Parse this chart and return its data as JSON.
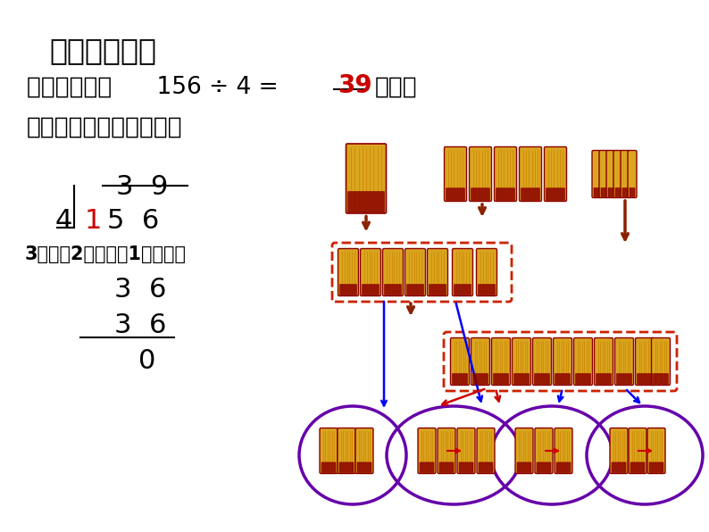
{
  "bg_color": "#ffffff",
  "title": "二、合作探索",
  "title_fontsize": 24,
  "line1_left": "列竖式计算：      156 ÷ 4 = ",
  "line1_answer": "39",
  "line1_right": "（吨）",
  "line1_fontsize": 19,
  "line2_text": "先想一想，商是几位数？",
  "line2_fontsize": 19,
  "overlay_text": "3除该有2再那不够1怎嗯办？",
  "overlay_fontsize": 15,
  "step_fontsize": 22,
  "div_fontsize": 22,
  "answer_color": "#cc0000",
  "dark_red_arrow": "#8B2200",
  "bundle_gold": "#DAA520",
  "bundle_dark": "#CD8500",
  "bundle_ring": "#8B0000",
  "red_box": "#cc2200",
  "purple_ellipse": "#6600aa"
}
